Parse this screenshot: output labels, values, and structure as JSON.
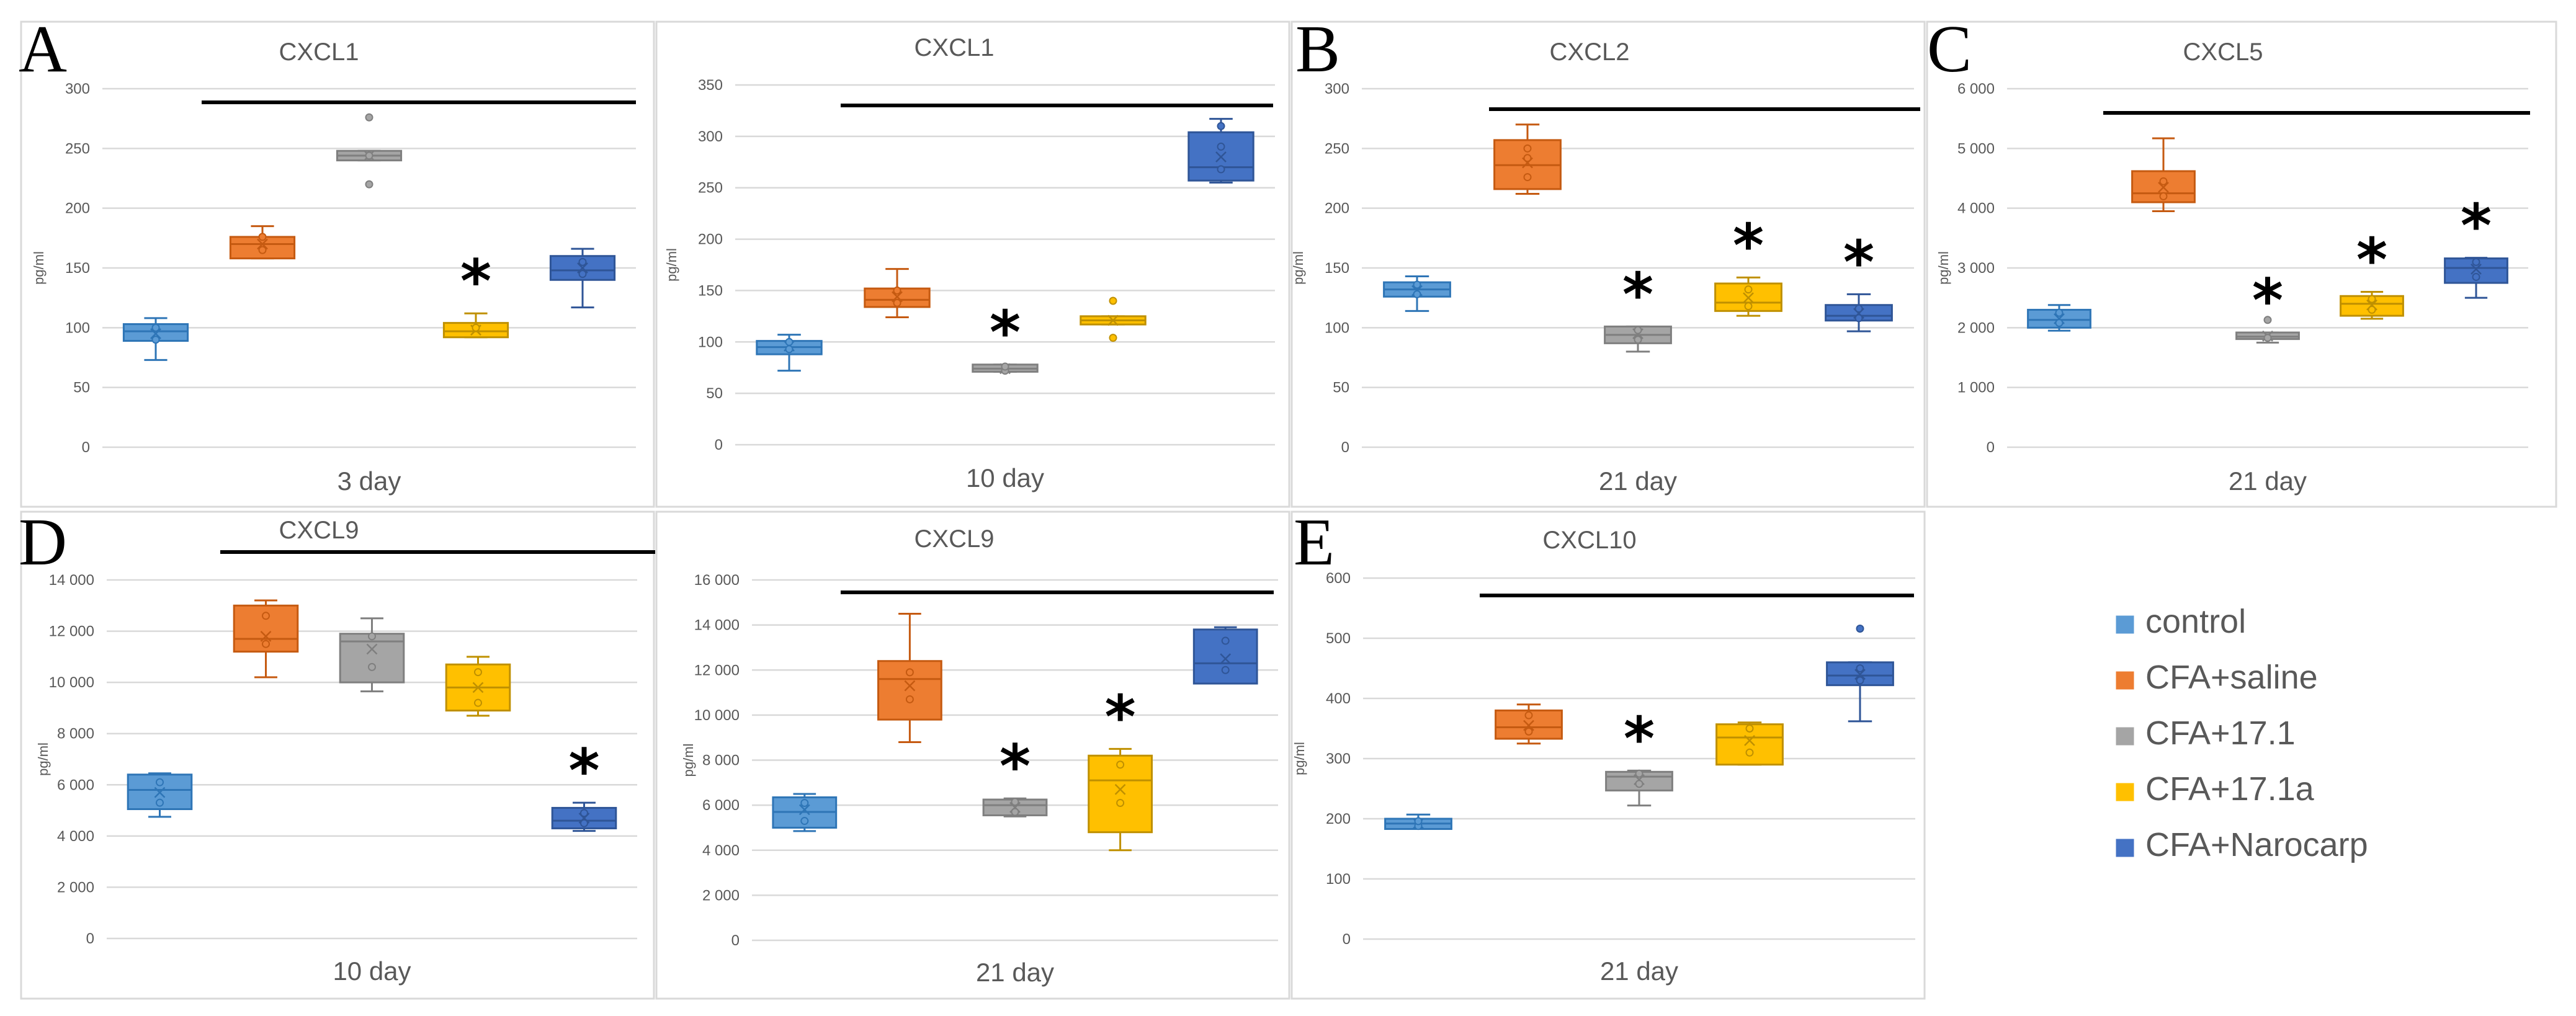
{
  "chart_data": [
    {
      "type": "box",
      "panel": "A",
      "title": "CXCL1",
      "xlabel": "3 day",
      "ylabel": "pg/ml",
      "ylim": [
        0,
        300
      ],
      "ytick_step": 50,
      "yticks": [
        "0",
        "50",
        "100",
        "150",
        "200",
        "250",
        "300"
      ],
      "boxes": [
        {
          "group": "control",
          "min": 73,
          "q1": 89,
          "median": 97,
          "q3": 103,
          "max": 108,
          "mean": 95,
          "points": [
            90,
            100
          ]
        },
        {
          "group": "CFA+saline",
          "min": 158,
          "q1": 158,
          "median": 170,
          "q3": 176,
          "max": 185,
          "mean": 170,
          "points": [
            165,
            176
          ]
        },
        {
          "group": "CFA+17.1",
          "min": 240,
          "q1": 240,
          "median": 244,
          "q3": 248,
          "max": 248,
          "mean": 244,
          "points": [
            276,
            220,
            244
          ]
        },
        {
          "group": "CFA+17.1a",
          "min": 92,
          "q1": 92,
          "median": 97,
          "q3": 104,
          "max": 112,
          "mean": 98,
          "points": [
            100
          ]
        },
        {
          "group": "CFA+Narocarp",
          "min": 117,
          "q1": 140,
          "median": 148,
          "q3": 160,
          "max": 166,
          "mean": 150,
          "points": [
            145,
            155
          ]
        }
      ],
      "stars": [
        "",
        "",
        "",
        "*",
        ""
      ],
      "sig_line": true
    },
    {
      "type": "box",
      "panel": "",
      "title": "CXCL1",
      "xlabel": "10 day",
      "ylabel": "pg/ml",
      "ylim": [
        0,
        350
      ],
      "ytick_step": 50,
      "yticks": [
        "0",
        "50",
        "100",
        "150",
        "200",
        "250",
        "300",
        "350"
      ],
      "boxes": [
        {
          "group": "control",
          "min": 72,
          "q1": 88,
          "median": 95,
          "q3": 101,
          "max": 107,
          "mean": 96,
          "points": [
            93,
            100
          ]
        },
        {
          "group": "CFA+saline",
          "min": 124,
          "q1": 134,
          "median": 141,
          "q3": 152,
          "max": 171,
          "mean": 144,
          "points": [
            138,
            150
          ]
        },
        {
          "group": "CFA+17.1",
          "min": 71,
          "q1": 71,
          "median": 74,
          "q3": 78,
          "max": 78,
          "mean": 74,
          "points": [
            72,
            76
          ]
        },
        {
          "group": "CFA+17.1a",
          "min": 117,
          "q1": 117,
          "median": 121,
          "q3": 125,
          "max": 125,
          "mean": 121,
          "points": [
            140,
            104
          ]
        },
        {
          "group": "CFA+Narocarp",
          "min": 255,
          "q1": 257,
          "median": 270,
          "q3": 304,
          "max": 317,
          "mean": 280,
          "points": [
            310,
            290,
            268
          ]
        }
      ],
      "stars": [
        "",
        "",
        "*",
        "",
        ""
      ],
      "sig_line": true
    },
    {
      "type": "box",
      "panel": "B",
      "title": "CXCL2",
      "xlabel": "21 day",
      "ylabel": "pg/ml",
      "ylim": [
        0,
        300
      ],
      "ytick_step": 50,
      "yticks": [
        "0",
        "50",
        "100",
        "150",
        "200",
        "250",
        "300"
      ],
      "boxes": [
        {
          "group": "control",
          "min": 114,
          "q1": 126,
          "median": 132,
          "q3": 138,
          "max": 143,
          "mean": 131,
          "points": [
            128,
            136
          ]
        },
        {
          "group": "CFA+saline",
          "min": 212,
          "q1": 216,
          "median": 236,
          "q3": 257,
          "max": 270,
          "mean": 238,
          "points": [
            226,
            242,
            250
          ]
        },
        {
          "group": "CFA+17.1",
          "min": 80,
          "q1": 87,
          "median": 94,
          "q3": 101,
          "max": 101,
          "mean": 95,
          "points": [
            90,
            98
          ]
        },
        {
          "group": "CFA+17.1a",
          "min": 110,
          "q1": 114,
          "median": 121,
          "q3": 137,
          "max": 142,
          "mean": 125,
          "points": [
            118,
            132
          ]
        },
        {
          "group": "CFA+Narocarp",
          "min": 97,
          "q1": 106,
          "median": 110,
          "q3": 119,
          "max": 128,
          "mean": 112,
          "points": [
            108,
            116
          ]
        }
      ],
      "stars": [
        "",
        "",
        "*",
        "*",
        "*"
      ],
      "sig_line": true
    },
    {
      "type": "box",
      "panel": "C",
      "title": "CXCL5",
      "xlabel": "21 day",
      "ylabel": "pg/ml",
      "ylim": [
        0,
        6000
      ],
      "ytick_step": 1000,
      "yticks": [
        "0",
        "1 000",
        "2 000",
        "3 000",
        "4 000",
        "5 000",
        "6 000"
      ],
      "boxes": [
        {
          "group": "control",
          "min": 1950,
          "q1": 2000,
          "median": 2130,
          "q3": 2300,
          "max": 2380,
          "mean": 2150,
          "points": [
            2080,
            2250
          ]
        },
        {
          "group": "CFA+saline",
          "min": 3950,
          "q1": 4100,
          "median": 4250,
          "q3": 4620,
          "max": 5170,
          "mean": 4350,
          "points": [
            4200,
            4450
          ]
        },
        {
          "group": "CFA+17.1",
          "min": 1750,
          "q1": 1810,
          "median": 1850,
          "q3": 1920,
          "max": 1920,
          "mean": 1860,
          "points": [
            2130,
            1830
          ]
        },
        {
          "group": "CFA+17.1a",
          "min": 2150,
          "q1": 2200,
          "median": 2400,
          "q3": 2530,
          "max": 2600,
          "mean": 2380,
          "points": [
            2300,
            2480
          ]
        },
        {
          "group": "CFA+Narocarp",
          "min": 2500,
          "q1": 2750,
          "median": 3000,
          "q3": 3160,
          "max": 3170,
          "mean": 2980,
          "points": [
            2850,
            3100
          ]
        }
      ],
      "stars": [
        "",
        "",
        "*",
        "*",
        "*"
      ],
      "sig_line": true
    },
    {
      "type": "box",
      "panel": "D",
      "title": "CXCL9",
      "xlabel": "10 day",
      "ylabel": "pg/ml",
      "ylim": [
        0,
        14000
      ],
      "ytick_step": 2000,
      "yticks": [
        "0",
        "2 000",
        "4 000",
        "6 000",
        "8 000",
        "10 000",
        "12 000",
        "14 000"
      ],
      "boxes": [
        {
          "group": "control",
          "min": 4750,
          "q1": 5050,
          "median": 5800,
          "q3": 6400,
          "max": 6450,
          "mean": 5700,
          "points": [
            5300,
            6100
          ]
        },
        {
          "group": "CFA+saline",
          "min": 10200,
          "q1": 11200,
          "median": 11700,
          "q3": 13000,
          "max": 13200,
          "mean": 11800,
          "points": [
            11500,
            12600
          ]
        },
        {
          "group": "CFA+17.1",
          "min": 9650,
          "q1": 10000,
          "median": 11600,
          "q3": 11900,
          "max": 12500,
          "mean": 11300,
          "points": [
            10600,
            11800
          ]
        },
        {
          "group": "CFA+17.1a",
          "min": 8700,
          "q1": 8900,
          "median": 9800,
          "q3": 10700,
          "max": 11000,
          "mean": 9800,
          "points": [
            9200,
            10400
          ]
        },
        {
          "group": "CFA+Narocarp",
          "min": 4200,
          "q1": 4300,
          "median": 4600,
          "q3": 5100,
          "max": 5300,
          "mean": 4700,
          "points": [
            4500,
            4900
          ]
        }
      ],
      "stars": [
        "",
        "",
        "",
        "",
        "*"
      ],
      "sig_line": true
    },
    {
      "type": "box",
      "panel": "",
      "title": "CXCL9",
      "xlabel": "21 day",
      "ylabel": "pg/ml",
      "ylim": [
        0,
        16000
      ],
      "ytick_step": 2000,
      "yticks": [
        "0",
        "2 000",
        "4 000",
        "6 000",
        "8 000",
        "10 000",
        "12 000",
        "14 000",
        "16 000"
      ],
      "boxes": [
        {
          "group": "control",
          "min": 4850,
          "q1": 5000,
          "median": 5700,
          "q3": 6350,
          "max": 6500,
          "mean": 5800,
          "points": [
            5300,
            6100
          ]
        },
        {
          "group": "CFA+saline",
          "min": 8800,
          "q1": 9800,
          "median": 11600,
          "q3": 12400,
          "max": 14500,
          "mean": 11300,
          "points": [
            10700,
            11900
          ]
        },
        {
          "group": "CFA+17.1",
          "min": 5500,
          "q1": 5550,
          "median": 6000,
          "q3": 6250,
          "max": 6300,
          "mean": 5900,
          "points": [
            5700,
            6150
          ]
        },
        {
          "group": "CFA+17.1a",
          "min": 4000,
          "q1": 4800,
          "median": 7100,
          "q3": 8200,
          "max": 8500,
          "mean": 6700,
          "points": [
            6100,
            7800
          ]
        },
        {
          "group": "CFA+Narocarp",
          "min": 11400,
          "q1": 11400,
          "median": 12300,
          "q3": 13800,
          "max": 13900,
          "mean": 12500,
          "points": [
            12000,
            13300
          ]
        }
      ],
      "stars": [
        "",
        "",
        "*",
        "*",
        ""
      ],
      "sig_line": true
    },
    {
      "type": "box",
      "panel": "E",
      "title": "CXCL10",
      "xlabel": "21 day",
      "ylabel": "pg/ml",
      "ylim": [
        0,
        600
      ],
      "ytick_step": 100,
      "yticks": [
        "0",
        "100",
        "200",
        "300",
        "400",
        "500",
        "600"
      ],
      "boxes": [
        {
          "group": "control",
          "min": 183,
          "q1": 183,
          "median": 192,
          "q3": 200,
          "max": 207,
          "mean": 192,
          "points": [
            188,
            196
          ]
        },
        {
          "group": "CFA+saline",
          "min": 325,
          "q1": 333,
          "median": 352,
          "q3": 380,
          "max": 390,
          "mean": 355,
          "points": [
            345,
            372
          ]
        },
        {
          "group": "CFA+17.1",
          "min": 222,
          "q1": 247,
          "median": 270,
          "q3": 278,
          "max": 280,
          "mean": 265,
          "points": [
            258,
            275
          ]
        },
        {
          "group": "CFA+17.1a",
          "min": 290,
          "q1": 290,
          "median": 335,
          "q3": 357,
          "max": 360,
          "mean": 330,
          "points": [
            310,
            350
          ]
        },
        {
          "group": "CFA+Narocarp",
          "min": 362,
          "q1": 422,
          "median": 438,
          "q3": 460,
          "max": 460,
          "mean": 440,
          "points": [
            516,
            430,
            450
          ]
        }
      ],
      "stars": [
        "",
        "",
        "*",
        "",
        ""
      ],
      "sig_line": true
    }
  ],
  "legend": {
    "items": [
      {
        "label": "control",
        "color": "#5b9bd5"
      },
      {
        "label": "CFA+saline",
        "color": "#ed7d31"
      },
      {
        "label": "CFA+17.1",
        "color": "#a5a5a5"
      },
      {
        "label": "CFA+17.1a",
        "color": "#ffc000"
      },
      {
        "label": "CFA+Narocarp",
        "color": "#4472c4"
      }
    ]
  },
  "colors": {
    "control": {
      "fill": "#5b9bd5",
      "stroke": "#2e75b6"
    },
    "CFA+saline": {
      "fill": "#ed7d31",
      "stroke": "#c55a11"
    },
    "CFA+17.1": {
      "fill": "#a5a5a5",
      "stroke": "#7f7f7f"
    },
    "CFA+17.1a": {
      "fill": "#ffc000",
      "stroke": "#bf9000"
    },
    "CFA+Narocarp": {
      "fill": "#4472c4",
      "stroke": "#2f5597"
    }
  }
}
